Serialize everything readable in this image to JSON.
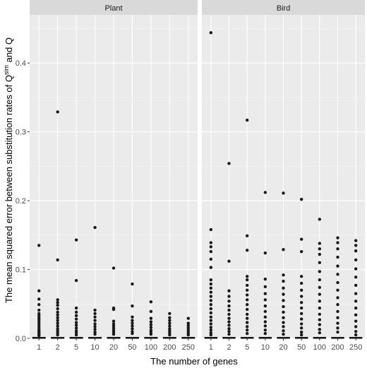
{
  "chart_data": {
    "type": "boxplot",
    "xlabel": "The number of genes",
    "ylabel_parts": {
      "prefix": "The mean squared error between substitution rates of Q",
      "superscript": "sim",
      "suffix": " and Q"
    },
    "ylim": [
      0,
      0.47
    ],
    "y_ticks": [
      {
        "value": 0.0,
        "label": "0.0"
      },
      {
        "value": 0.1,
        "label": "0.1"
      },
      {
        "value": 0.2,
        "label": "0.2"
      },
      {
        "value": 0.3,
        "label": "0.3"
      },
      {
        "value": 0.4,
        "label": "0.4"
      }
    ],
    "categories": [
      "1",
      "2",
      "5",
      "10",
      "20",
      "50",
      "100",
      "200",
      "250"
    ],
    "facets": [
      {
        "label": "Plant",
        "groups": [
          {
            "category": "1",
            "box_top": 0.001,
            "outliers": [
              0.135,
              0.069,
              0.057,
              0.049,
              0.041,
              0.036,
              0.033,
              0.03,
              0.027,
              0.024,
              0.021,
              0.018,
              0.015,
              0.012,
              0.01,
              0.008,
              0.006,
              0.004
            ]
          },
          {
            "category": "2",
            "box_top": 0.001,
            "outliers": [
              0.329,
              0.114,
              0.056,
              0.052,
              0.048,
              0.043,
              0.038,
              0.034,
              0.03,
              0.026,
              0.022,
              0.018,
              0.014,
              0.011,
              0.008,
              0.005
            ]
          },
          {
            "category": "5",
            "box_top": 0.001,
            "outliers": [
              0.143,
              0.084,
              0.044,
              0.038,
              0.033,
              0.028,
              0.023,
              0.019,
              0.015,
              0.011,
              0.008,
              0.005
            ]
          },
          {
            "category": "10",
            "box_top": 0.001,
            "outliers": [
              0.161,
              0.041,
              0.036,
              0.031,
              0.026,
              0.021,
              0.017,
              0.013,
              0.009,
              0.006
            ]
          },
          {
            "category": "20",
            "box_top": 0.001,
            "outliers": [
              0.102,
              0.044,
              0.042,
              0.025,
              0.021,
              0.018,
              0.015,
              0.012,
              0.009,
              0.006
            ]
          },
          {
            "category": "50",
            "box_top": 0.001,
            "outliers": [
              0.079,
              0.047,
              0.031,
              0.026,
              0.022,
              0.018,
              0.014,
              0.01,
              0.007
            ]
          },
          {
            "category": "100",
            "box_top": 0.001,
            "outliers": [
              0.053,
              0.039,
              0.029,
              0.024,
              0.02,
              0.016,
              0.012,
              0.009,
              0.006
            ]
          },
          {
            "category": "200",
            "box_top": 0.001,
            "outliers": [
              0.036,
              0.03,
              0.026,
              0.022,
              0.018,
              0.014,
              0.011,
              0.008,
              0.005
            ]
          },
          {
            "category": "250",
            "box_top": 0.001,
            "outliers": [
              0.029,
              0.022,
              0.019,
              0.016,
              0.013,
              0.01,
              0.007,
              0.005
            ]
          }
        ]
      },
      {
        "label": "Bird",
        "groups": [
          {
            "category": "1",
            "box_top": 0.001,
            "outliers": [
              0.444,
              0.158,
              0.139,
              0.133,
              0.126,
              0.115,
              0.103,
              0.085,
              0.079,
              0.073,
              0.067,
              0.061,
              0.055,
              0.049,
              0.043,
              0.037,
              0.031,
              0.026,
              0.021,
              0.016,
              0.012,
              0.008,
              0.005
            ]
          },
          {
            "category": "2",
            "box_top": 0.001,
            "outliers": [
              0.254,
              0.112,
              0.069,
              0.061,
              0.054,
              0.047,
              0.041,
              0.035,
              0.029,
              0.024,
              0.019,
              0.014,
              0.01,
              0.006
            ]
          },
          {
            "category": "5",
            "box_top": 0.001,
            "outliers": [
              0.317,
              0.149,
              0.128,
              0.09,
              0.085,
              0.077,
              0.07,
              0.063,
              0.056,
              0.049,
              0.042,
              0.035,
              0.029,
              0.023,
              0.017,
              0.012,
              0.007
            ]
          },
          {
            "category": "10",
            "box_top": 0.001,
            "outliers": [
              0.212,
              0.124,
              0.086,
              0.075,
              0.065,
              0.056,
              0.047,
              0.039,
              0.031,
              0.024,
              0.018,
              0.012,
              0.007
            ]
          },
          {
            "category": "20",
            "box_top": 0.001,
            "outliers": [
              0.211,
              0.129,
              0.092,
              0.083,
              0.073,
              0.064,
              0.055,
              0.046,
              0.038,
              0.03,
              0.023,
              0.017,
              0.011,
              0.006
            ]
          },
          {
            "category": "50",
            "box_top": 0.001,
            "outliers": [
              0.202,
              0.144,
              0.126,
              0.09,
              0.08,
              0.07,
              0.061,
              0.052,
              0.044,
              0.036,
              0.028,
              0.021,
              0.015,
              0.009,
              0.005
            ]
          },
          {
            "category": "100",
            "box_top": 0.001,
            "outliers": [
              0.173,
              0.138,
              0.13,
              0.122,
              0.11,
              0.097,
              0.085,
              0.074,
              0.064,
              0.054,
              0.044,
              0.035,
              0.027,
              0.02,
              0.013,
              0.008
            ]
          },
          {
            "category": "200",
            "box_top": 0.001,
            "outliers": [
              0.146,
              0.139,
              0.13,
              0.118,
              0.105,
              0.093,
              0.081,
              0.07,
              0.059,
              0.049,
              0.039,
              0.03,
              0.022,
              0.015,
              0.009
            ]
          },
          {
            "category": "250",
            "box_top": 0.001,
            "outliers": [
              0.142,
              0.135,
              0.127,
              0.114,
              0.101,
              0.089,
              0.077,
              0.065,
              0.054,
              0.044,
              0.034,
              0.025,
              0.017,
              0.01,
              0.005
            ]
          }
        ]
      }
    ],
    "colors": {
      "panel_background": "#ebebeb",
      "strip_background": "#d9d9d9",
      "grid_major": "#ffffff",
      "grid_minor": "#f5f5f5",
      "points": "#1a1a1a"
    }
  }
}
